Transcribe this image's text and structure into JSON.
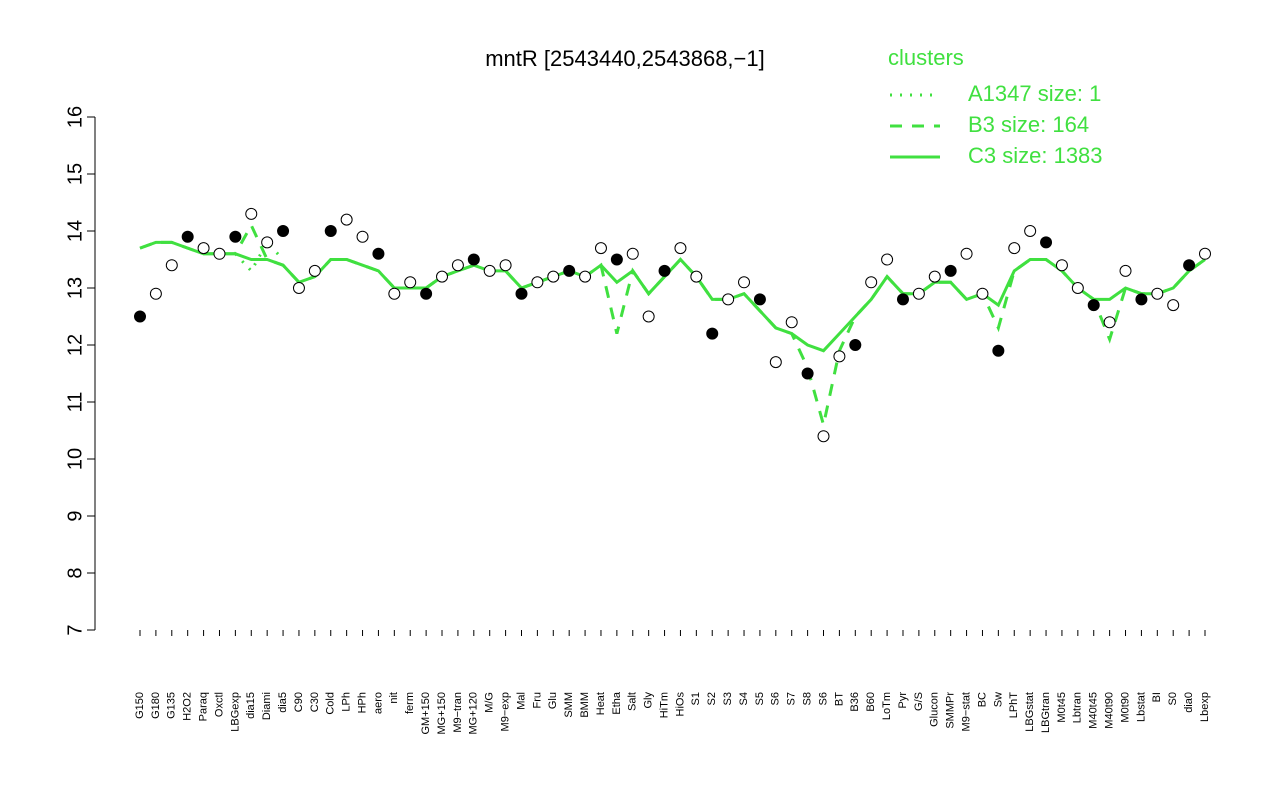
{
  "chart_data": {
    "type": "line",
    "title": "mntR [2543440,2543868,−1]",
    "legend_title": "clusters",
    "legend": "top-right",
    "categories": [
      "G150",
      "G180",
      "G135",
      "H2O2",
      "Paraq",
      "Oxctl",
      "LBGexp",
      "dia15",
      "Diami",
      "dia5",
      "C90",
      "C30",
      "Cold",
      "LPh",
      "HPh",
      "aero",
      "nit",
      "ferm",
      "GM+150",
      "MG+150",
      "M9−tran",
      "MG+120",
      "M/G",
      "M9−exp",
      "Mal",
      "Fru",
      "Glu",
      "SMM",
      "BMM",
      "Heat",
      "Etha",
      "Salt",
      "Gly",
      "HiTm",
      "HiOs",
      "S1",
      "S2",
      "S3",
      "S4",
      "S5",
      "S6",
      "S7",
      "S8",
      "S6",
      "BT",
      "B36",
      "B60",
      "LoTm",
      "Pyr",
      "G/S",
      "Glucon",
      "SMMPr",
      "M9−stat",
      "BC",
      "Sw",
      "LPhT",
      "LBGstat",
      "LBGtran",
      "M0t45",
      "Lbtran",
      "M40t45",
      "M40t90",
      "M0t90",
      "Lbstat",
      "BI",
      "S0",
      "dia0",
      "Lbexp"
    ],
    "values": [
      12.5,
      12.9,
      13.4,
      13.9,
      13.7,
      13.6,
      13.9,
      14.3,
      13.8,
      14.0,
      13.0,
      13.3,
      14.0,
      14.2,
      13.9,
      13.6,
      12.9,
      13.1,
      12.9,
      13.2,
      13.4,
      13.5,
      13.3,
      13.4,
      12.9,
      13.1,
      13.2,
      13.3,
      13.2,
      13.7,
      13.5,
      13.6,
      12.5,
      13.3,
      13.7,
      13.2,
      12.2,
      12.8,
      13.1,
      12.8,
      11.7,
      12.4,
      11.5,
      10.4,
      11.8,
      12.0,
      13.1,
      13.5,
      12.8,
      12.9,
      13.2,
      13.3,
      13.6,
      12.9,
      11.9,
      13.7,
      14.0,
      13.8,
      13.4,
      13.0,
      12.7,
      12.4,
      13.3,
      12.8,
      12.9,
      12.7,
      13.4,
      13.6
    ],
    "point_color": "#000000",
    "series": [
      {
        "name": "A1347 size: 1",
        "color": "#40e040",
        "dash": "dotted",
        "values": [
          null,
          null,
          null,
          null,
          null,
          null,
          13.6,
          13.3,
          13.8,
          13.5,
          null,
          null,
          null,
          null,
          null,
          null,
          null,
          null,
          null,
          null,
          null,
          null,
          null,
          null,
          null,
          null,
          null,
          null,
          null,
          null,
          null,
          null,
          null,
          null,
          null,
          null,
          null,
          null,
          null,
          null,
          null,
          null,
          null,
          null,
          null,
          null,
          null,
          null,
          null,
          null,
          null,
          null,
          null,
          null,
          null,
          null,
          null,
          null,
          null,
          null,
          null,
          null,
          null,
          null,
          null,
          null,
          null,
          null
        ]
      },
      {
        "name": "B3 size: 164",
        "color": "#40e040",
        "dash": "dashed",
        "values": [
          13.7,
          13.8,
          13.8,
          13.7,
          13.6,
          13.6,
          13.6,
          14.1,
          13.5,
          13.4,
          13.1,
          13.2,
          13.5,
          13.5,
          13.4,
          13.3,
          13.0,
          13.0,
          13.0,
          13.2,
          13.3,
          13.4,
          13.3,
          13.3,
          13.0,
          13.1,
          13.2,
          13.3,
          13.2,
          13.4,
          12.2,
          13.3,
          12.9,
          13.2,
          13.5,
          13.2,
          12.8,
          12.8,
          12.9,
          12.6,
          12.3,
          12.2,
          11.6,
          10.6,
          11.9,
          12.5,
          12.8,
          13.2,
          12.9,
          12.9,
          13.1,
          13.1,
          12.8,
          12.9,
          12.3,
          13.3,
          13.5,
          13.5,
          13.3,
          13.0,
          12.8,
          12.1,
          13.0,
          12.9,
          12.9,
          13.0,
          13.3,
          13.5
        ]
      },
      {
        "name": "C3 size: 1383",
        "color": "#40e040",
        "dash": "solid",
        "values": [
          13.7,
          13.8,
          13.8,
          13.7,
          13.6,
          13.6,
          13.6,
          13.5,
          13.5,
          13.4,
          13.1,
          13.2,
          13.5,
          13.5,
          13.4,
          13.3,
          13.0,
          13.0,
          13.0,
          13.2,
          13.3,
          13.4,
          13.3,
          13.3,
          13.0,
          13.1,
          13.2,
          13.3,
          13.2,
          13.4,
          13.1,
          13.3,
          12.9,
          13.2,
          13.5,
          13.2,
          12.8,
          12.8,
          12.9,
          12.6,
          12.3,
          12.2,
          12.0,
          11.9,
          12.2,
          12.5,
          12.8,
          13.2,
          12.9,
          12.9,
          13.1,
          13.1,
          12.8,
          12.9,
          12.7,
          13.3,
          13.5,
          13.5,
          13.3,
          13.0,
          12.8,
          12.8,
          13.0,
          12.9,
          12.9,
          13.0,
          13.3,
          13.5
        ]
      }
    ],
    "ylim": [
      7,
      16
    ],
    "yticks": [
      7,
      8,
      9,
      10,
      11,
      12,
      13,
      14,
      15,
      16
    ]
  }
}
